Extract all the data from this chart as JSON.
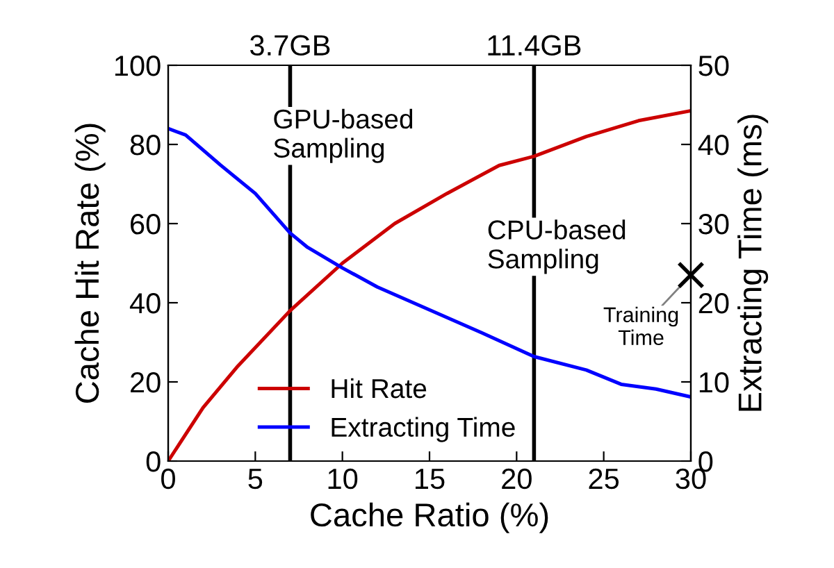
{
  "chart_data": {
    "type": "line",
    "xlabel": "Cache Ratio (%)",
    "ylabel": "Cache Hit Rate (%)",
    "y2label": "Extracting Time (ms)",
    "xlim": [
      0,
      30
    ],
    "xticks": [
      0,
      5,
      10,
      15,
      20,
      25,
      30
    ],
    "ylim": [
      0,
      100
    ],
    "yticks": [
      0,
      20,
      40,
      60,
      80,
      100
    ],
    "y2lim": [
      0,
      50
    ],
    "y2ticks": [
      0,
      10,
      20,
      30,
      40,
      50
    ],
    "series": [
      {
        "name": "Hit Rate",
        "color": "#cc0000",
        "x": [
          0,
          2,
          4,
          7,
          10,
          13,
          16,
          19,
          21,
          24,
          27,
          30
        ],
        "values": [
          0,
          13.5,
          24,
          38,
          50,
          60,
          67.6,
          74.7,
          77,
          82,
          86,
          88.5
        ]
      },
      {
        "name": "Extracting Time",
        "color": "#0000ff",
        "axis": "y2",
        "x": [
          0,
          1,
          3,
          5,
          7,
          8,
          10,
          12,
          15,
          18,
          21,
          24,
          26,
          28,
          30
        ],
        "values": [
          42,
          41.2,
          37.4,
          33.8,
          28.8,
          27,
          24.4,
          22,
          19.1,
          16.2,
          13.2,
          11.5,
          9.7,
          9.1,
          8.1
        ]
      },
      {
        "type": "scatter",
        "color": "#000000",
        "axis": "y2",
        "marker": "cross",
        "x": [
          30
        ],
        "values": [
          23.5
        ]
      }
    ],
    "ref_lines": [
      {
        "axis": "x",
        "value": 7,
        "label": "3.7GB",
        "color": "#000000"
      },
      {
        "axis": "x",
        "value": 21,
        "label": "11.4GB",
        "color": "#000000"
      }
    ],
    "annotations": [
      "GPU-based\nSampling",
      "CPU-based\nSampling",
      "Training\nTime"
    ],
    "legend": "bottom",
    "grid": false
  }
}
